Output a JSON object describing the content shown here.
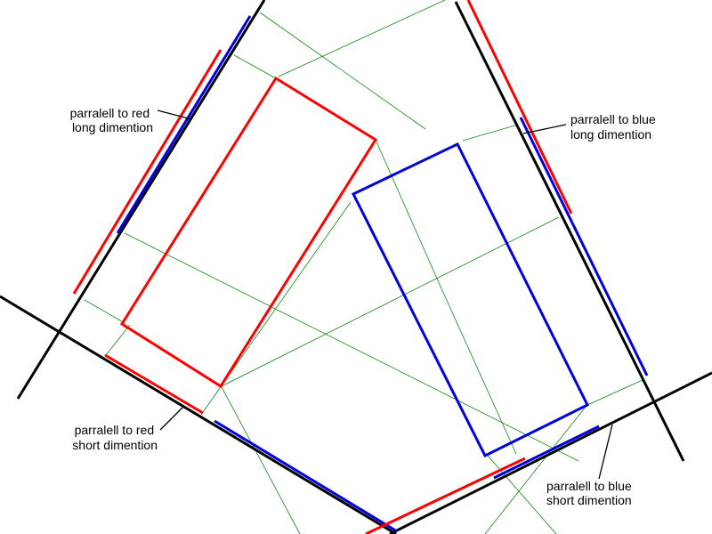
{
  "colors": {
    "background": "#ffffff",
    "frame": "#000000",
    "red": "#ff0000",
    "blue": "#0000dd",
    "construction": "#118811"
  },
  "labels": {
    "red_long": [
      "parralell to red",
      "long dimention"
    ],
    "blue_long": [
      "parralell to blue",
      "long dimention"
    ],
    "red_short": [
      "parralell to red",
      "short dimention"
    ],
    "blue_short": [
      "parralell to blue",
      "short dimention"
    ]
  }
}
